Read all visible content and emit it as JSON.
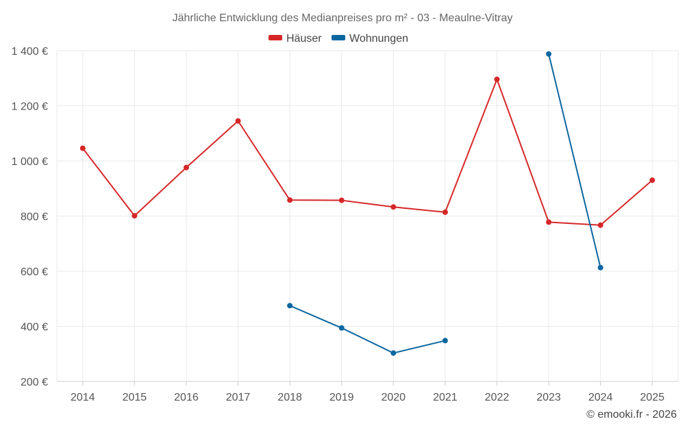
{
  "chart_data": {
    "type": "line",
    "title": "Jährliche Entwicklung des Medianpreises pro m² - 03 - Meaulne-Vitray",
    "categories": [
      "2014",
      "2015",
      "2016",
      "2017",
      "2018",
      "2019",
      "2020",
      "2021",
      "2022",
      "2023",
      "2024",
      "2025"
    ],
    "series": [
      {
        "name": "Häuser",
        "color": "#d62728",
        "values": [
          1046,
          801,
          976,
          1145,
          858,
          857,
          833,
          814,
          1296,
          778,
          767,
          930
        ]
      },
      {
        "name": "Wohnungen",
        "color": "#0b67a0",
        "values": [
          null,
          null,
          null,
          null,
          475,
          394,
          303,
          348,
          null,
          1388,
          613,
          null
        ]
      }
    ],
    "ylim": [
      200,
      1400
    ],
    "yticks": [
      200,
      400,
      600,
      800,
      1000,
      1200,
      1400
    ],
    "ytick_labels": [
      "200 €",
      "400 €",
      "600 €",
      "800 €",
      "1 000 €",
      "1 200 €",
      "1 400 €"
    ],
    "xlabel": "",
    "ylabel": "",
    "grid": true,
    "legend_position": "top-center"
  },
  "credit": "© emooki.fr - 2026"
}
